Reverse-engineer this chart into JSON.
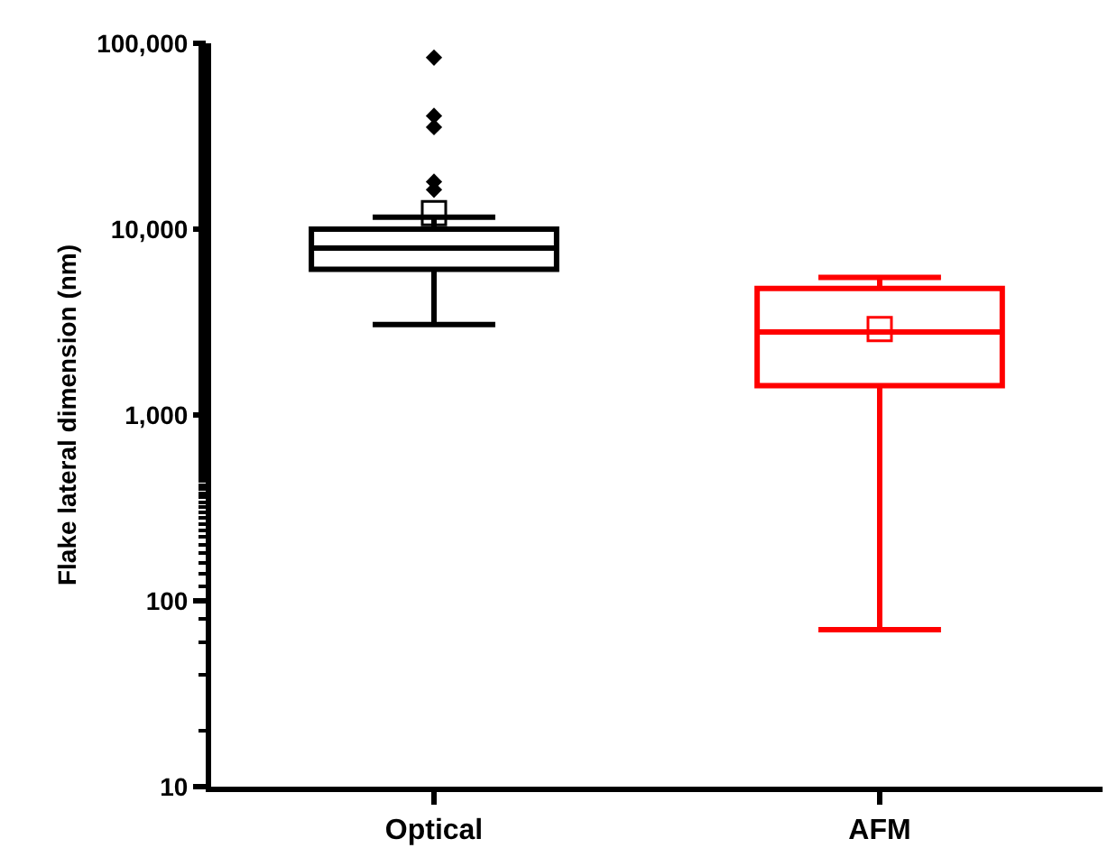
{
  "chart_data": {
    "type": "box",
    "ylabel": "Flake lateral dimension (nm)",
    "categories": [
      "Optical",
      "AFM"
    ],
    "colors": [
      "#000000",
      "#ff0000"
    ],
    "boxes": [
      {
        "low": 3070,
        "q1": 6080,
        "median": 7900,
        "q3": 10000,
        "high": 11600,
        "mean": 12200,
        "outliers": [
          83800,
          40700,
          35400,
          18000,
          16300
        ]
      },
      {
        "low": 70,
        "q1": 1440,
        "median": 2800,
        "q3": 4790,
        "high": 5500,
        "mean": 2900
      }
    ],
    "log": true,
    "ylim": [
      10,
      100000
    ],
    "yticks": [
      {
        "value": 10,
        "label": "10"
      },
      {
        "value": 100,
        "label": "100"
      },
      {
        "value": 1000,
        "label": "1,000"
      },
      {
        "value": 10000,
        "label": "10,000"
      },
      {
        "value": 100000,
        "label": "100,000"
      }
    ],
    "marker": "diamond",
    "grid": false
  }
}
